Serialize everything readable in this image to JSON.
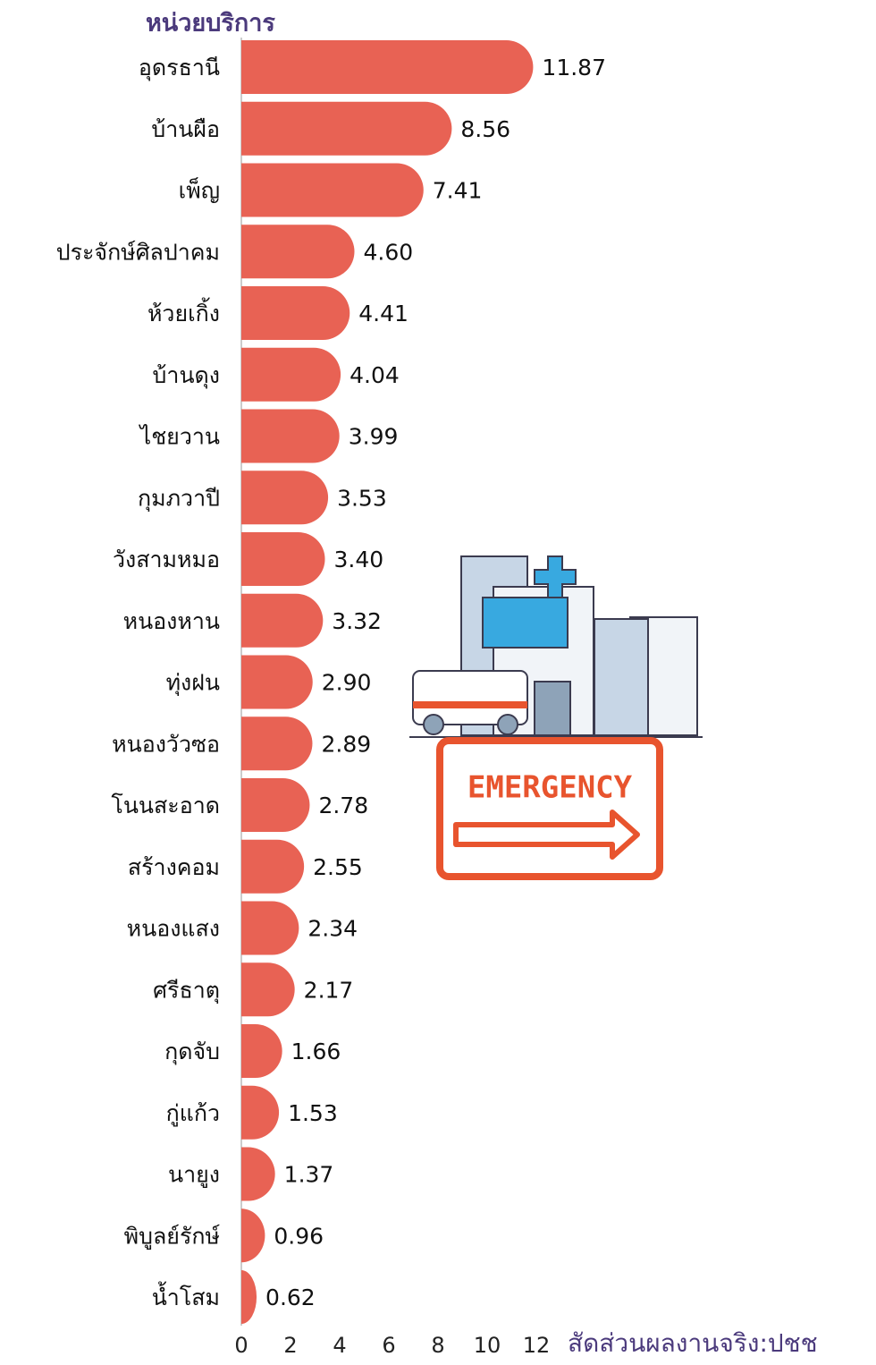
{
  "chart_data": {
    "type": "hbar",
    "title": "หน่วยบริการ",
    "x_label": "สัดส่วนผลงานจริง:ปชช",
    "annotation": "EMERGENCY",
    "categories": [
      "อุดรธานี",
      "บ้านผือ",
      "เพ็ญ",
      "ประจักษ์ศิลปาคม",
      "ห้วยเกิ้ง",
      "บ้านดุง",
      "ไชยวาน",
      "กุมภวาปี",
      "วังสามหมอ",
      "หนองหาน",
      "ทุ่งฝน",
      "หนองวัวซอ",
      "โนนสะอาด",
      "สร้างคอม",
      "หนองแสง",
      "ศรีธาตุ",
      "กุดจับ",
      "กู่แก้ว",
      "นายูง",
      "พิบูลย์รักษ์",
      "น้ำโสม"
    ],
    "values": [
      11.87,
      8.56,
      7.41,
      4.6,
      4.41,
      4.04,
      3.99,
      3.53,
      3.4,
      3.32,
      2.9,
      2.89,
      2.78,
      2.55,
      2.34,
      2.17,
      1.66,
      1.53,
      1.37,
      0.96,
      0.62
    ],
    "value_labels": [
      "11.87",
      "8.56",
      "7.41",
      "4.60",
      "4.41",
      "4.04",
      "3.99",
      "3.53",
      "3.40",
      "3.32",
      "2.90",
      "2.89",
      "2.78",
      "2.55",
      "2.34",
      "2.17",
      "1.66",
      "1.53",
      "1.37",
      "0.96",
      "0.62"
    ],
    "color": "#e86254",
    "xlim": [
      0,
      12
    ],
    "xticks": [
      0,
      2,
      4,
      6,
      8,
      10,
      12
    ]
  }
}
